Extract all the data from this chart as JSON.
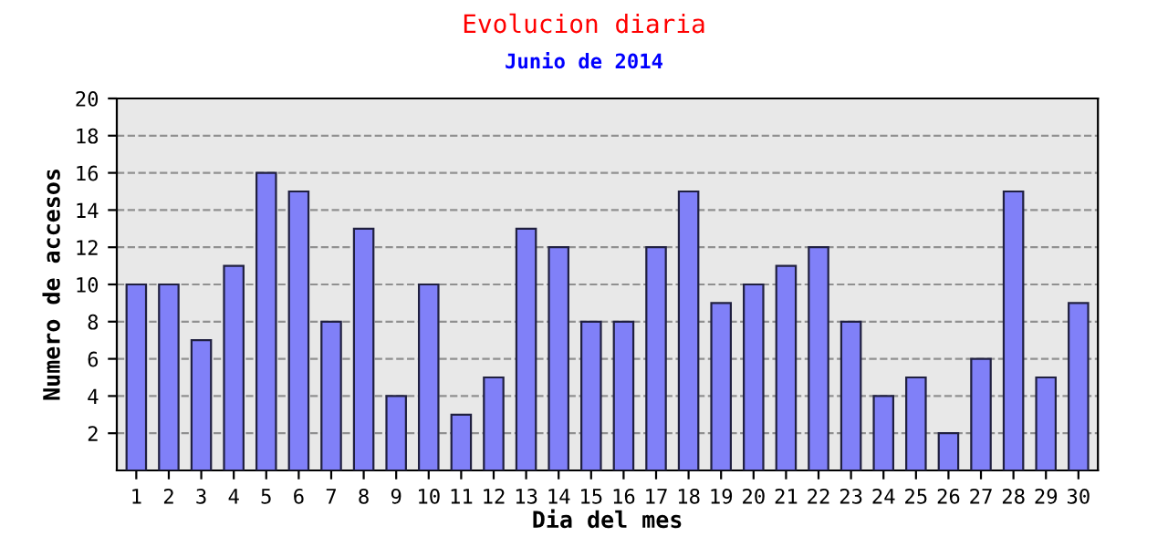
{
  "chart_data": {
    "type": "bar",
    "title": "Evolucion diaria",
    "subtitle": "Junio de 2014",
    "xlabel": "Dia del mes",
    "ylabel": "Numero de accesos",
    "categories": [
      "1",
      "2",
      "3",
      "4",
      "5",
      "6",
      "7",
      "8",
      "9",
      "10",
      "11",
      "12",
      "13",
      "14",
      "15",
      "16",
      "17",
      "18",
      "19",
      "20",
      "21",
      "22",
      "23",
      "24",
      "25",
      "26",
      "27",
      "28",
      "29",
      "30"
    ],
    "values": [
      10,
      10,
      7,
      11,
      16,
      15,
      8,
      13,
      4,
      10,
      3,
      5,
      13,
      12,
      8,
      8,
      12,
      15,
      9,
      10,
      11,
      12,
      8,
      4,
      5,
      2,
      6,
      15,
      5,
      9
    ],
    "color": "#8080f8",
    "ylim": [
      0,
      20
    ],
    "yticks": [
      2,
      4,
      6,
      8,
      10,
      12,
      14,
      16,
      18,
      20
    ],
    "grid": "y"
  }
}
